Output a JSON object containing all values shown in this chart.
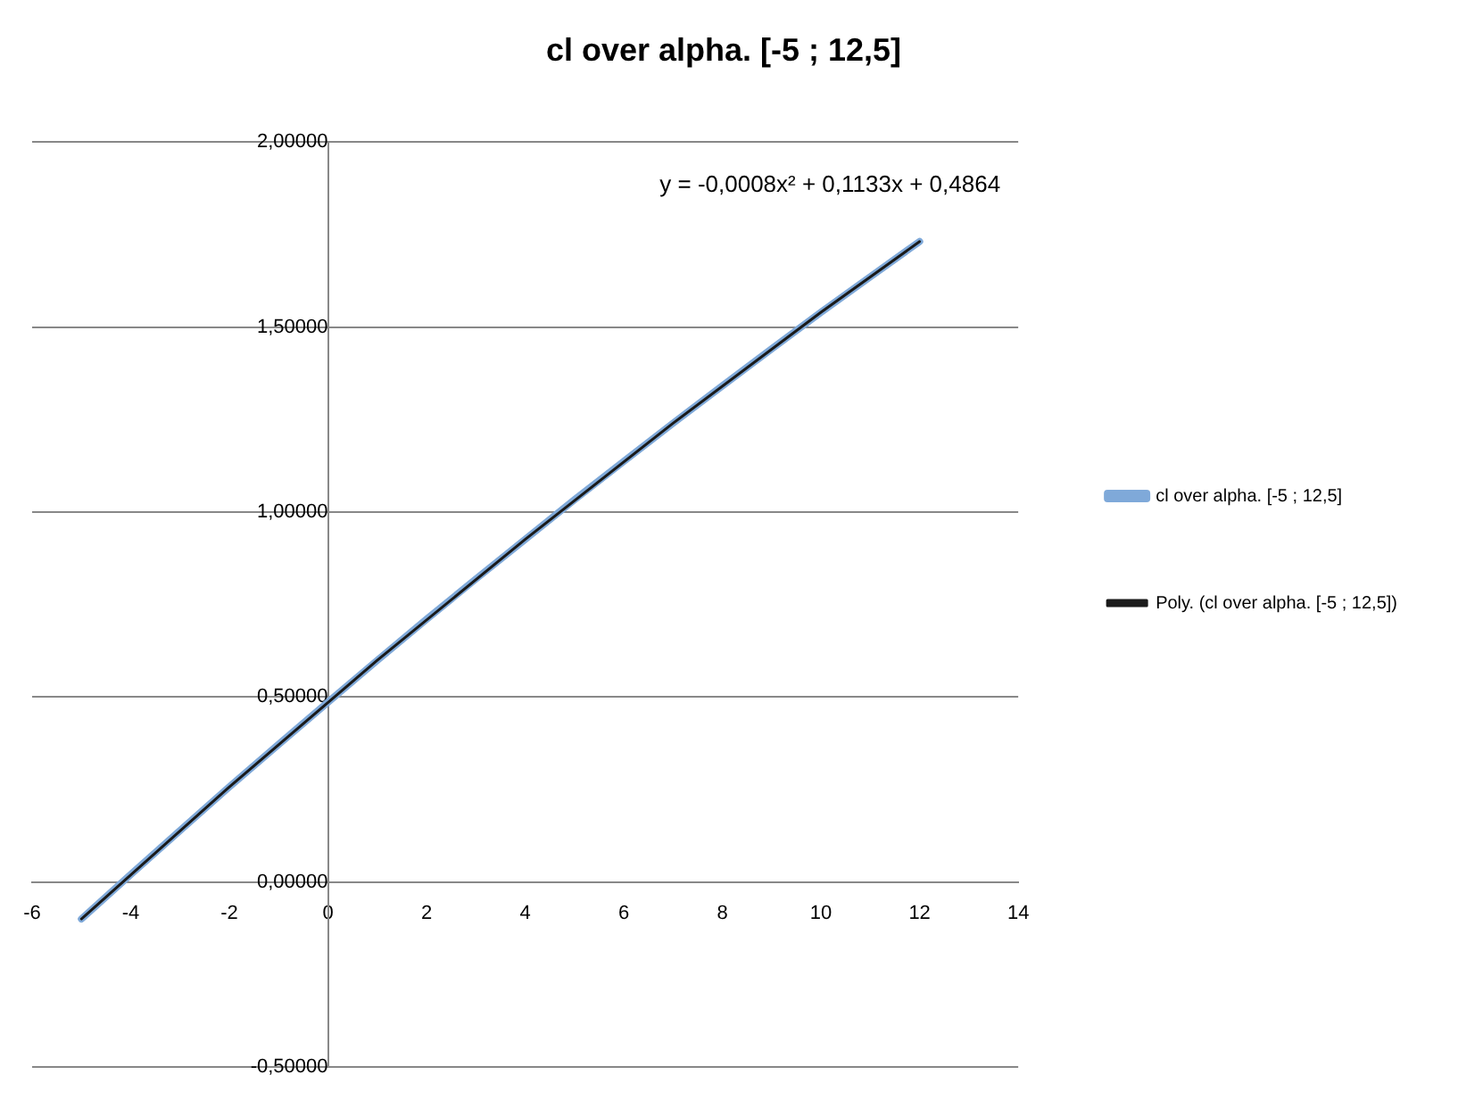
{
  "chart_data": {
    "type": "line",
    "title": "cl over alpha. [-5 ; 12,5]",
    "xlim": [
      -6,
      14
    ],
    "xticks": [
      -6,
      -4,
      -2,
      0,
      2,
      4,
      6,
      8,
      10,
      12,
      14
    ],
    "ylim": [
      -0.5,
      2
    ],
    "yticks": [
      {
        "value": -0.5,
        "label": "-0,50000"
      },
      {
        "value": 0,
        "label": "0,00000"
      },
      {
        "value": 0.5,
        "label": "0,50000"
      },
      {
        "value": 1,
        "label": "1,00000"
      },
      {
        "value": 1.5,
        "label": "1,50000"
      },
      {
        "value": 2,
        "label": "2,00000"
      }
    ],
    "x": [
      -5,
      -4,
      -3,
      -2,
      -1,
      0,
      1,
      2,
      3,
      4,
      5,
      6,
      7,
      8,
      9,
      10,
      11,
      12
    ],
    "series": [
      {
        "name": "cl over alpha. [-5 ; 12,5]",
        "color": "#7fa9d9",
        "values": [
          -0.1,
          0.02,
          0.139,
          0.257,
          0.372,
          0.486,
          0.599,
          0.71,
          0.819,
          0.926,
          1.033,
          1.137,
          1.24,
          1.341,
          1.441,
          1.54,
          1.636,
          1.731
        ]
      },
      {
        "name": "Poly. (cl over alpha. [-5 ; 12,5])",
        "type": "line",
        "color": "#1a1a1a",
        "x": [
          -5,
          -2,
          1,
          4,
          7,
          10,
          12
        ],
        "values": [
          -0.1,
          0.257,
          0.599,
          0.926,
          1.24,
          1.54,
          1.731
        ]
      }
    ],
    "annotations": [
      "y = -0,0008x² + 0,1133x + 0,4864"
    ],
    "grid": "y",
    "legend": "right",
    "marker": "none",
    "line_style": "solid"
  }
}
